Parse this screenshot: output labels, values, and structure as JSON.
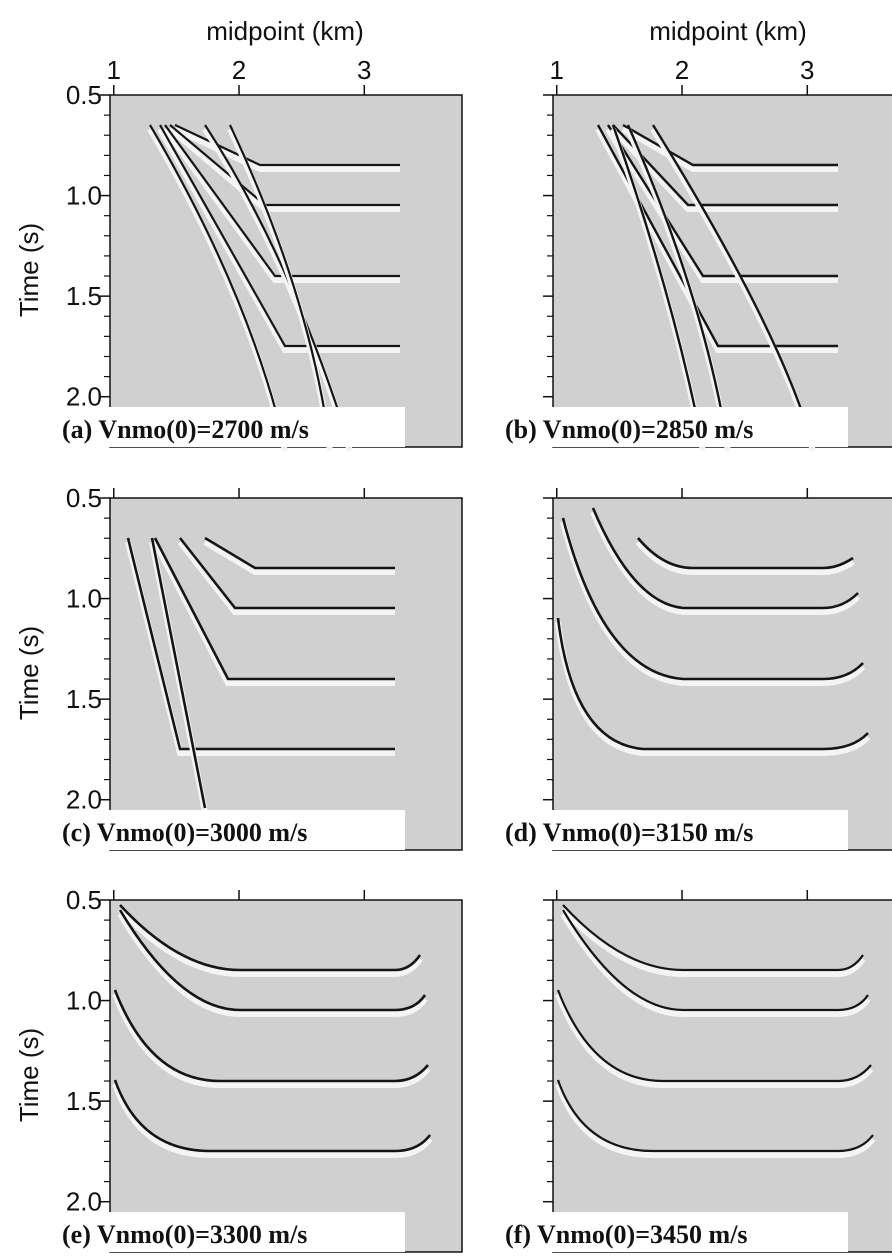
{
  "chart_data": [
    {
      "type": "seismic",
      "caption": "(a) Vnmo(0)=2700 m/s",
      "x_label": "midpoint (km)",
      "y_label": "Time (s)",
      "xlim": [
        0.97,
        3.78
      ],
      "ylim": [
        0.5,
        2.25
      ],
      "y_inverted": true,
      "xticks": [
        1,
        2,
        3
      ],
      "yticks": [
        0.5,
        {
          "value": 1,
          "label": "1.0"
        },
        1.5,
        {
          "value": 2,
          "label": "2.0"
        }
      ],
      "xtick_labels": true,
      "ytick_labels": true
    },
    {
      "type": "seismic",
      "caption": "(b) Vnmo(0)=2850 m/s",
      "x_label": "midpoint (km)",
      "xlim": [
        0.97,
        3.78
      ],
      "ylim": [
        0.5,
        2.25
      ],
      "y_inverted": true,
      "xticks": [
        1,
        2,
        3
      ],
      "yticks": [
        0.5,
        1,
        1.5,
        2
      ],
      "xtick_labels": true,
      "ytick_labels": false
    },
    {
      "type": "seismic",
      "caption": "(c) Vnmo(0)=3000 m/s",
      "y_label": "Time (s)",
      "xlim": [
        0.97,
        3.78
      ],
      "ylim": [
        0.5,
        2.25
      ],
      "y_inverted": true,
      "xticks": [
        1,
        2,
        3
      ],
      "yticks": [
        0.5,
        {
          "value": 1,
          "label": "1.0"
        },
        1.5,
        {
          "value": 2,
          "label": "2.0"
        }
      ],
      "xtick_labels": false,
      "ytick_labels": true
    },
    {
      "type": "seismic",
      "caption": "(d) Vnmo(0)=3150 m/s",
      "xlim": [
        0.97,
        3.78
      ],
      "ylim": [
        0.5,
        2.25
      ],
      "y_inverted": true,
      "xticks": [
        1,
        2,
        3
      ],
      "yticks": [
        0.5,
        1,
        1.5,
        2
      ],
      "xtick_labels": false,
      "ytick_labels": false
    },
    {
      "type": "seismic",
      "caption": "(e) Vnmo(0)=3300 m/s",
      "y_label": "Time (s)",
      "xlim": [
        0.97,
        3.78
      ],
      "ylim": [
        0.5,
        2.25
      ],
      "y_inverted": true,
      "xticks": [
        1,
        2,
        3
      ],
      "yticks": [
        0.5,
        {
          "value": 1,
          "label": "1.0"
        },
        1.5,
        {
          "value": 2,
          "label": "2.0"
        }
      ],
      "xtick_labels": false,
      "ytick_labels": true
    },
    {
      "type": "seismic",
      "caption": "(f) Vnmo(0)=3450 m/s",
      "xlim": [
        0.97,
        3.78
      ],
      "ylim": [
        0.5,
        2.25
      ],
      "y_inverted": true,
      "xticks": [
        1,
        2,
        3
      ],
      "yticks": [
        0.5,
        1,
        1.5,
        2
      ],
      "xtick_labels": false,
      "ytick_labels": false
    }
  ]
}
